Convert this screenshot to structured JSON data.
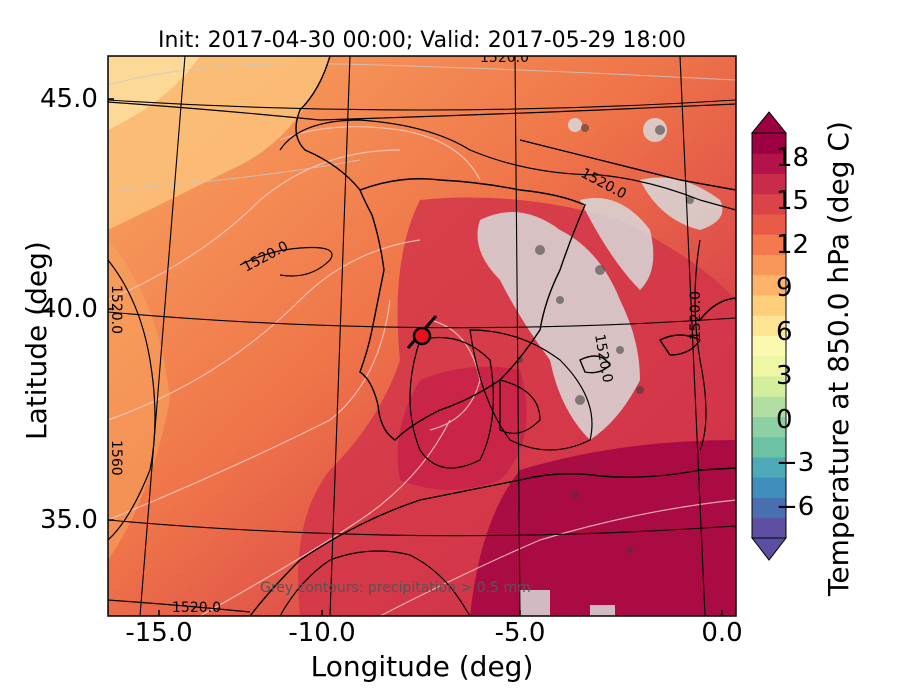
{
  "title": "Init: 2017-04-30 00:00; Valid: 2017-05-29 18:00",
  "xlabel": "Longitude (deg)",
  "ylabel": "Latitude (deg)",
  "colorbar_label": "Temperature at 850.0 hPa (deg C)",
  "annotation": "Grey contours: precipitation > 0.5 mm",
  "contour_value_label": "1520.0",
  "contour_value_label_2": "1560",
  "x_ticks": [
    "-15.0",
    "-10.0",
    "-5.0",
    "0.0"
  ],
  "y_ticks": [
    "45.0",
    "40.0",
    "35.0"
  ],
  "colorbar_ticks": [
    "18",
    "15",
    "12",
    "9",
    "6",
    "3",
    "0",
    "−3",
    "−6"
  ],
  "marker": {
    "lon": -7.6,
    "lat": 39.3,
    "color": "#e8101c"
  },
  "chart_data": {
    "type": "heatmap",
    "title": "Init: 2017-04-30 00:00; Valid: 2017-05-29 18:00",
    "xlabel": "Longitude (deg)",
    "ylabel": "Latitude (deg)",
    "xlim": [
      -16,
      0.2
    ],
    "ylim": [
      32.6,
      46.2
    ],
    "colorbar": {
      "label": "Temperature at 850.0 hPa (deg C)",
      "range": [
        -8,
        20
      ]
    },
    "contours": {
      "geopotential_labels": [
        "1520.0",
        "1560"
      ]
    }
  }
}
